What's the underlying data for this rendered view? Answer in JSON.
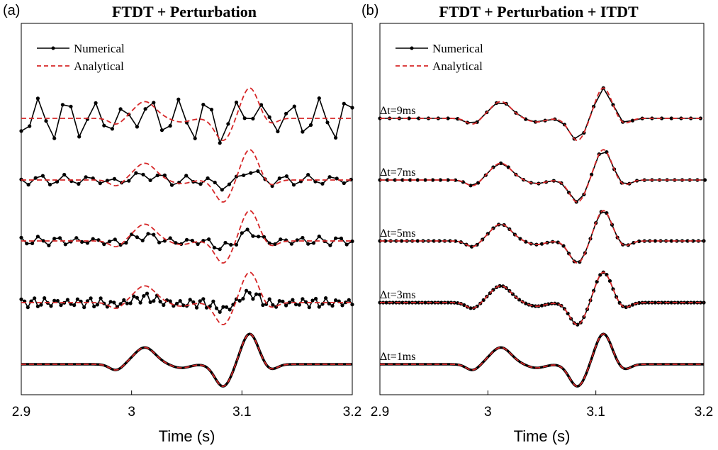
{
  "colors": {
    "numerical": "#000000",
    "analytical": "#d62728",
    "frame": "#000000"
  },
  "chart_data": [
    {
      "type": "line",
      "panel_label": "(a)",
      "title": "FTDT + Perturbation",
      "xlabel": "Time (s)",
      "ylabel": "",
      "xlim": [
        2.9,
        3.2
      ],
      "xticks": [
        2.9,
        3.0,
        3.1,
        3.2
      ],
      "xtick_labels": [
        "2.9",
        "3",
        "3.1",
        "3.2"
      ],
      "grid": false,
      "legend_position": "top-left",
      "legend": [
        "Numerical",
        "Analytical"
      ],
      "traces": [
        {
          "trace_label": "",
          "offset": 4,
          "dt": 0.0075,
          "oscillation_amplitude": 0.55,
          "waveform_scale": 1.0
        },
        {
          "trace_label": "",
          "offset": 3,
          "dt": 0.0065,
          "oscillation_amplitude": 0.14,
          "waveform_scale": 0.25
        },
        {
          "trace_label": "",
          "offset": 2,
          "dt": 0.005,
          "oscillation_amplitude": 0.12,
          "waveform_scale": 0.15
        },
        {
          "trace_label": "",
          "offset": 1,
          "dt": 0.003,
          "oscillation_amplitude": 0.13,
          "waveform_scale": 0.1
        },
        {
          "trace_label": "",
          "offset": 0,
          "dt": 0.001,
          "oscillation_amplitude": 0.0,
          "waveform_scale": 0.0
        }
      ]
    },
    {
      "type": "line",
      "panel_label": "(b)",
      "title": "FTDT + Perturbation + ITDT",
      "xlabel": "Time (s)",
      "ylabel": "",
      "xlim": [
        2.9,
        3.2
      ],
      "xticks": [
        2.9,
        3.0,
        3.1,
        3.2
      ],
      "xtick_labels": [
        "2.9",
        "3",
        "3.1",
        "3.2"
      ],
      "grid": false,
      "legend_position": "top-left",
      "legend": [
        "Numerical",
        "Analytical"
      ],
      "traces": [
        {
          "trace_label": "Δt=9ms",
          "offset": 4,
          "dt": 0.009,
          "oscillation_amplitude": 0.0,
          "waveform_scale": 0.0
        },
        {
          "trace_label": "Δt=7ms",
          "offset": 3,
          "dt": 0.007,
          "oscillation_amplitude": 0.0,
          "waveform_scale": 0.0
        },
        {
          "trace_label": "Δt=5ms",
          "offset": 2,
          "dt": 0.005,
          "oscillation_amplitude": 0.0,
          "waveform_scale": 0.0
        },
        {
          "trace_label": "Δt=3ms",
          "offset": 1,
          "dt": 0.003,
          "oscillation_amplitude": 0.0,
          "waveform_scale": 0.0
        },
        {
          "trace_label": "Δt=1ms",
          "offset": 0,
          "dt": 0.001,
          "oscillation_amplitude": 0.0,
          "waveform_scale": 0.0
        }
      ]
    }
  ]
}
